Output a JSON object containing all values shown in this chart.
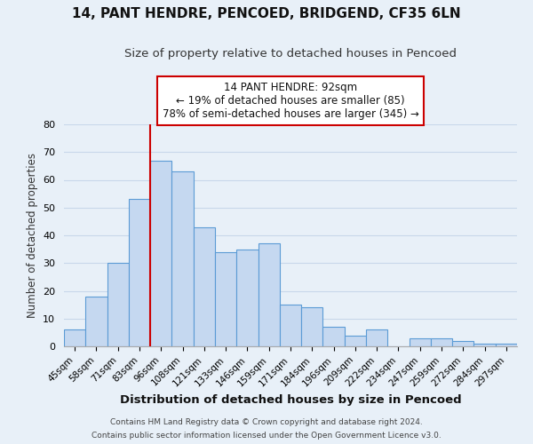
{
  "title": "14, PANT HENDRE, PENCOED, BRIDGEND, CF35 6LN",
  "subtitle": "Size of property relative to detached houses in Pencoed",
  "xlabel": "Distribution of detached houses by size in Pencoed",
  "ylabel": "Number of detached properties",
  "bar_labels": [
    "45sqm",
    "58sqm",
    "71sqm",
    "83sqm",
    "96sqm",
    "108sqm",
    "121sqm",
    "133sqm",
    "146sqm",
    "159sqm",
    "171sqm",
    "184sqm",
    "196sqm",
    "209sqm",
    "222sqm",
    "234sqm",
    "247sqm",
    "259sqm",
    "272sqm",
    "284sqm",
    "297sqm"
  ],
  "bar_values": [
    6,
    18,
    30,
    53,
    67,
    63,
    43,
    34,
    35,
    37,
    15,
    14,
    7,
    4,
    6,
    0,
    3,
    3,
    2,
    1,
    1
  ],
  "bar_color": "#c5d8f0",
  "bar_edge_color": "#5b9bd5",
  "vline_x_bar_index": 4,
  "vline_color": "#cc0000",
  "annotation_text": "14 PANT HENDRE: 92sqm\n← 19% of detached houses are smaller (85)\n78% of semi-detached houses are larger (345) →",
  "annotation_box_color": "#ffffff",
  "annotation_box_edge_color": "#cc0000",
  "ylim": [
    0,
    80
  ],
  "yticks": [
    0,
    10,
    20,
    30,
    40,
    50,
    60,
    70,
    80
  ],
  "grid_color": "#c8d8ea",
  "background_color": "#e8f0f8",
  "footer_line1": "Contains HM Land Registry data © Crown copyright and database right 2024.",
  "footer_line2": "Contains public sector information licensed under the Open Government Licence v3.0."
}
